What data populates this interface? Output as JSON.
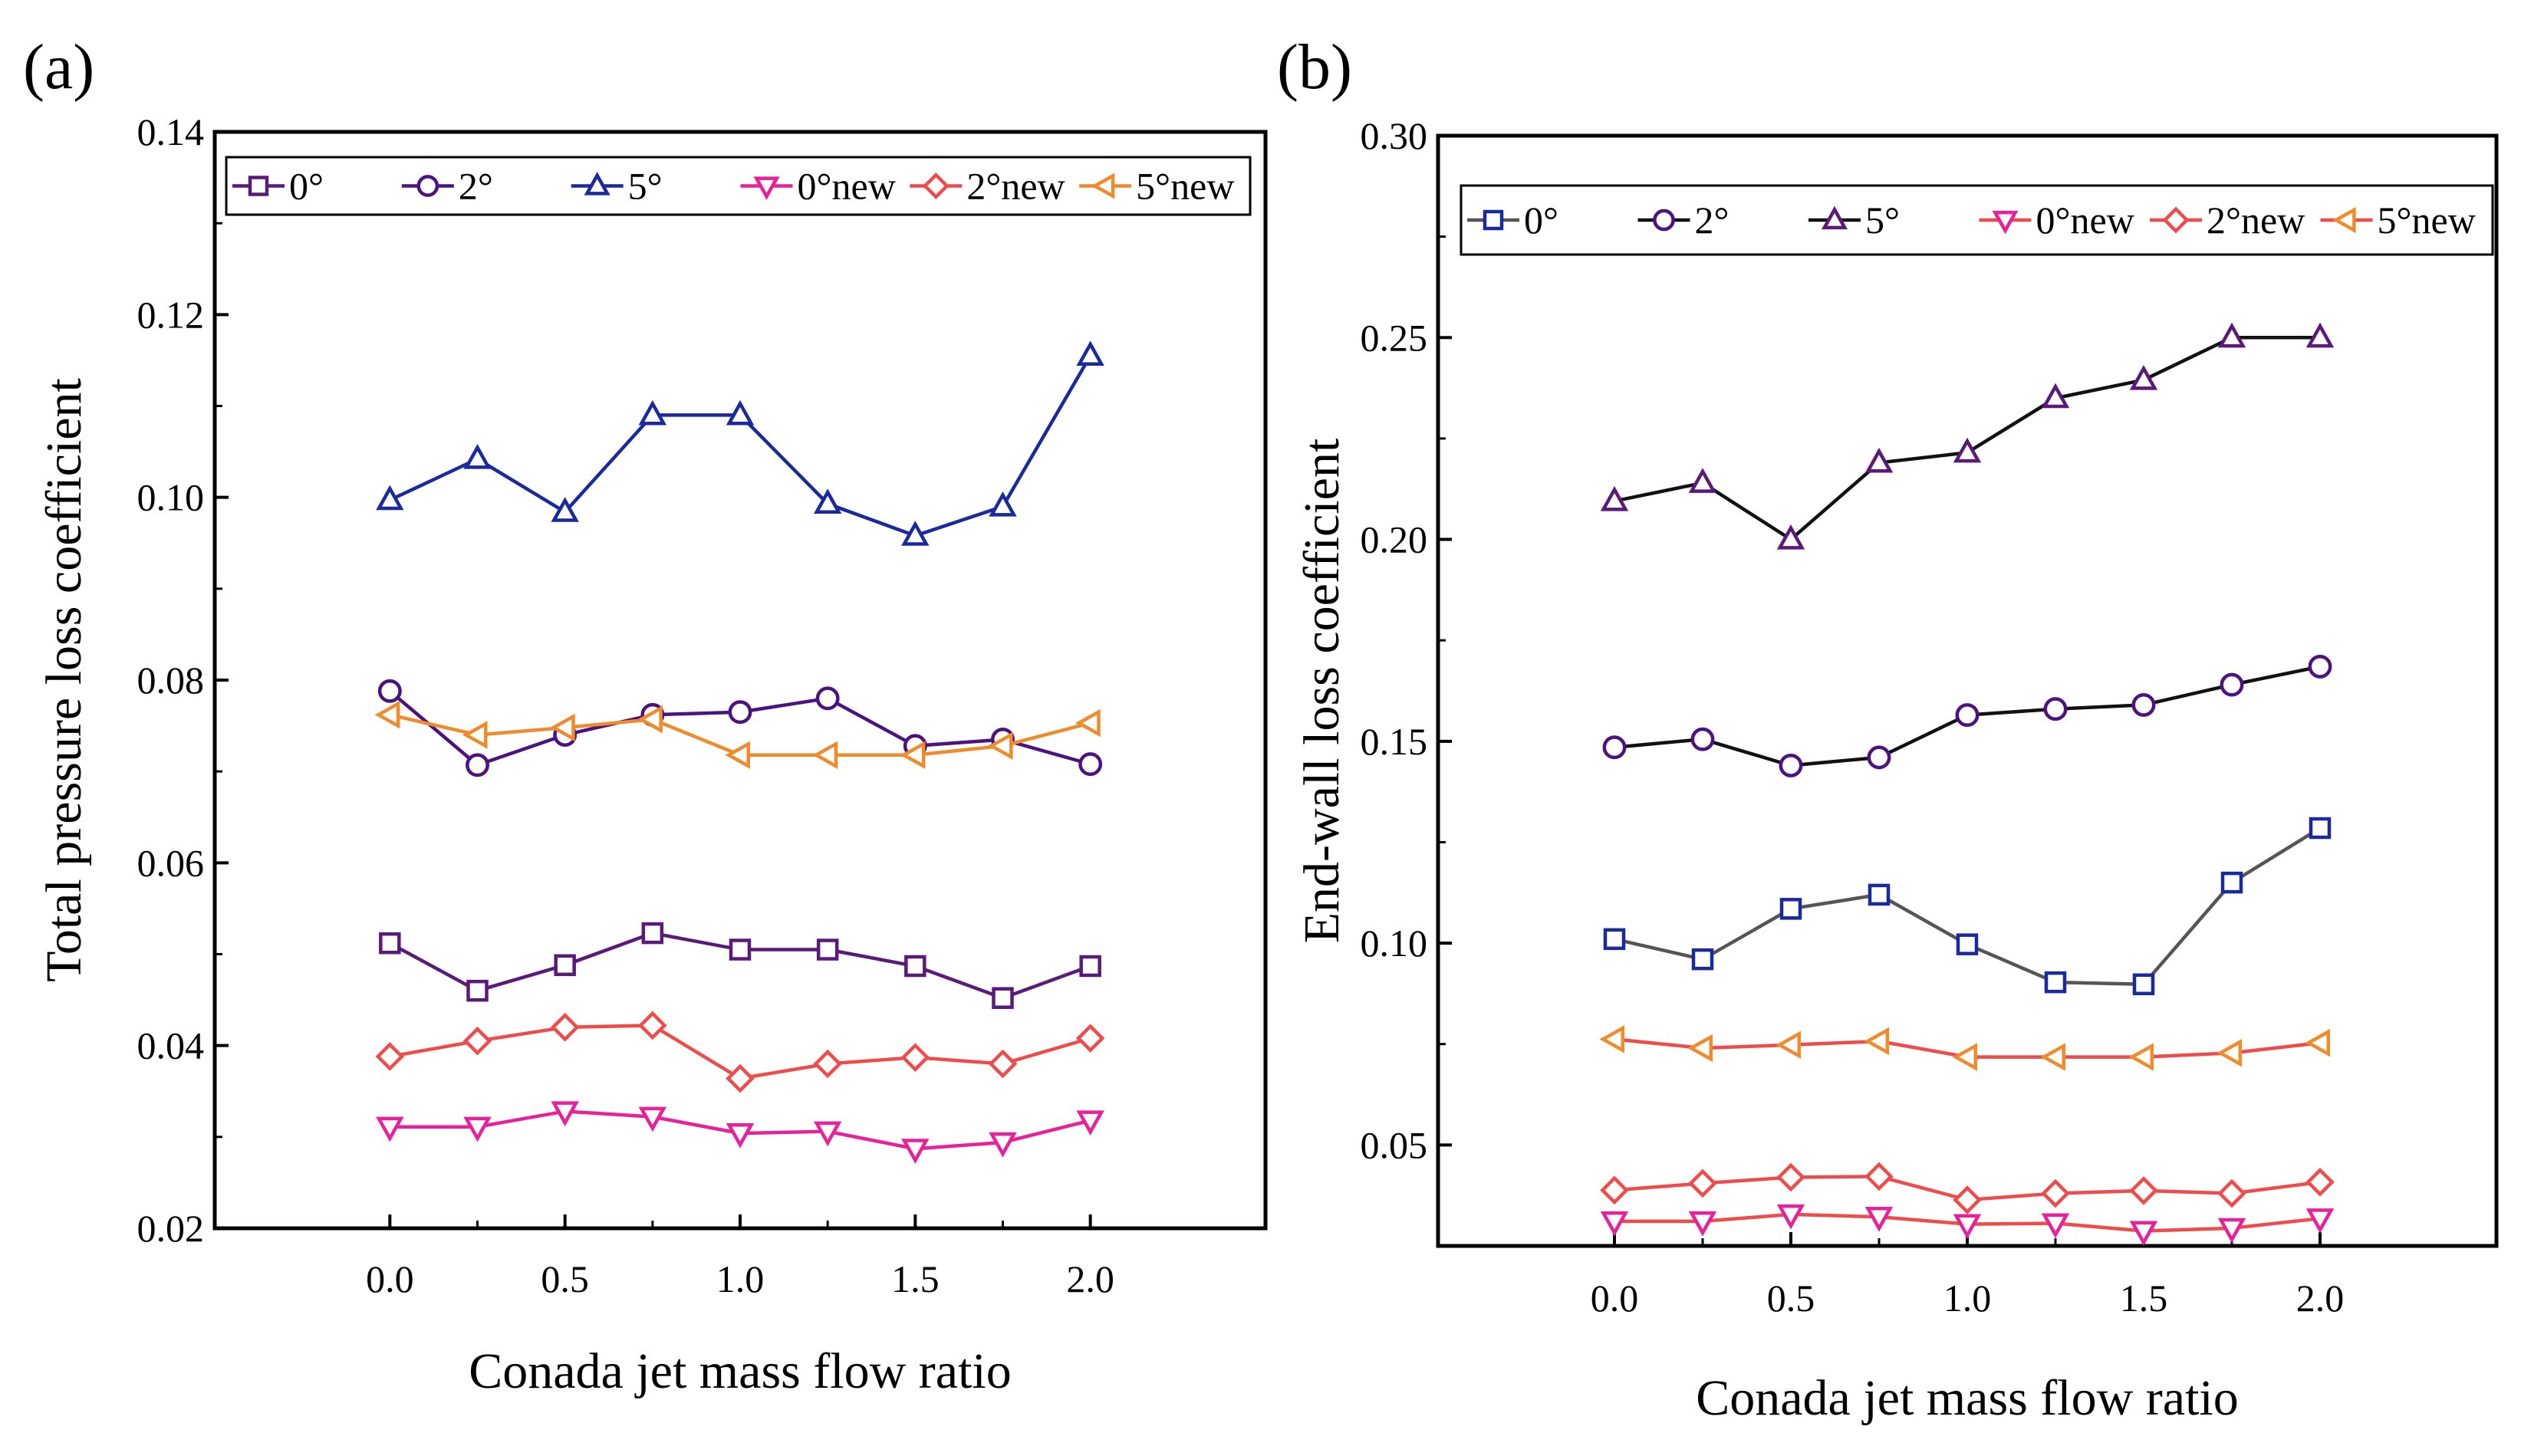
{
  "figure": {
    "panels": [
      "(a)",
      "(b)"
    ]
  },
  "chart_data": [
    {
      "type": "line",
      "panel": "(a)",
      "title": "",
      "xlabel": "Conada jet mass flow ratio",
      "ylabel": "Total pressure loss coefficient",
      "xlim": [
        -0.5,
        2.5
      ],
      "ylim": [
        0.02,
        0.14
      ],
      "xticks": [
        0.0,
        0.5,
        1.0,
        1.5,
        2.0
      ],
      "xtick_labels": [
        "0.0",
        "0.5",
        "1.0",
        "1.5",
        "2.0"
      ],
      "yticks": [
        0.02,
        0.04,
        0.06,
        0.08,
        0.1,
        0.12,
        0.14
      ],
      "ytick_labels": [
        "0.02",
        "0.04",
        "0.06",
        "0.08",
        "0.10",
        "0.12",
        "0.14"
      ],
      "legend_position": "top",
      "x": [
        0.0,
        0.25,
        0.5,
        0.75,
        1.0,
        1.25,
        1.5,
        1.75,
        2.0
      ],
      "series": [
        {
          "name": "0°",
          "color": "#5b1a7a",
          "marker": "square",
          "values": [
            0.0512,
            0.046,
            0.0488,
            0.0523,
            0.0505,
            0.0505,
            0.0487,
            0.0452,
            0.0487
          ]
        },
        {
          "name": "2°",
          "color": "#4b1280",
          "marker": "circle",
          "values": [
            0.0788,
            0.0707,
            0.074,
            0.0762,
            0.0765,
            0.078,
            0.0728,
            0.0735,
            0.0708
          ]
        },
        {
          "name": "5°",
          "color": "#1a2a9e",
          "marker": "triangle-up",
          "values": [
            0.0997,
            0.1042,
            0.0984,
            0.109,
            0.109,
            0.0993,
            0.0958,
            0.099,
            0.1155
          ]
        },
        {
          "name": "0°new",
          "color": "#e8209c",
          "marker": "triangle-down",
          "values": [
            0.0311,
            0.0311,
            0.0328,
            0.0322,
            0.0304,
            0.0306,
            0.0287,
            0.0294,
            0.0318
          ]
        },
        {
          "name": "2°new",
          "color": "#f04a4a",
          "marker": "diamond",
          "values": [
            0.0388,
            0.0405,
            0.042,
            0.0422,
            0.0364,
            0.038,
            0.0387,
            0.038,
            0.0408
          ]
        },
        {
          "name": "5°new",
          "color": "#f08a2a",
          "marker": "triangle-left",
          "values": [
            0.0762,
            0.074,
            0.0748,
            0.0757,
            0.0718,
            0.0718,
            0.0718,
            0.0728,
            0.0753
          ]
        }
      ]
    },
    {
      "type": "line",
      "panel": "(b)",
      "title": "",
      "xlabel": "Conada jet mass flow ratio",
      "ylabel": "End-wall loss coefficient",
      "xlim": [
        -0.5,
        2.5
      ],
      "ylim": [
        0.025,
        0.3
      ],
      "xticks": [
        0.0,
        0.5,
        1.0,
        1.5,
        2.0
      ],
      "xtick_labels": [
        "0.0",
        "0.5",
        "1.0",
        "1.5",
        "2.0"
      ],
      "yticks": [
        0.05,
        0.1,
        0.15,
        0.2,
        0.25,
        0.3
      ],
      "ytick_labels": [
        "0.05",
        "0.10",
        "0.15",
        "0.20",
        "0.25",
        "0.30"
      ],
      "legend_position": "top",
      "x": [
        0.0,
        0.25,
        0.5,
        0.75,
        1.0,
        1.25,
        1.5,
        1.75,
        2.0
      ],
      "series": [
        {
          "name": "0°",
          "color": "#1a2a9e",
          "line_color": "#555555",
          "marker": "square",
          "values": [
            0.101,
            0.096,
            0.1085,
            0.112,
            0.0997,
            0.0903,
            0.0898,
            0.115,
            0.1285
          ]
        },
        {
          "name": "2°",
          "color": "#4b1280",
          "line_color": "#111111",
          "marker": "circle",
          "values": [
            0.1485,
            0.1505,
            0.144,
            0.146,
            0.1565,
            0.158,
            0.159,
            0.164,
            0.1685
          ]
        },
        {
          "name": "5°",
          "color": "#5b1a7a",
          "line_color": "#111111",
          "marker": "triangle-up",
          "values": [
            0.2095,
            0.214,
            0.2,
            0.219,
            0.2215,
            0.235,
            0.2395,
            0.25,
            0.25
          ]
        },
        {
          "name": "0°new",
          "color": "#e8209c",
          "line_color": "#f04a4a",
          "marker": "triangle-down",
          "values": [
            0.0311,
            0.0311,
            0.0328,
            0.0322,
            0.0304,
            0.0306,
            0.0287,
            0.0294,
            0.0318
          ]
        },
        {
          "name": "2°new",
          "color": "#f04a4a",
          "line_color": "#f04a4a",
          "marker": "diamond",
          "values": [
            0.0388,
            0.0405,
            0.042,
            0.0422,
            0.0364,
            0.038,
            0.0387,
            0.038,
            0.0408
          ]
        },
        {
          "name": "5°new",
          "color": "#f08a2a",
          "line_color": "#f04a4a",
          "marker": "triangle-left",
          "values": [
            0.0762,
            0.074,
            0.0748,
            0.0757,
            0.0718,
            0.0718,
            0.0718,
            0.0728,
            0.0753
          ]
        }
      ]
    }
  ]
}
